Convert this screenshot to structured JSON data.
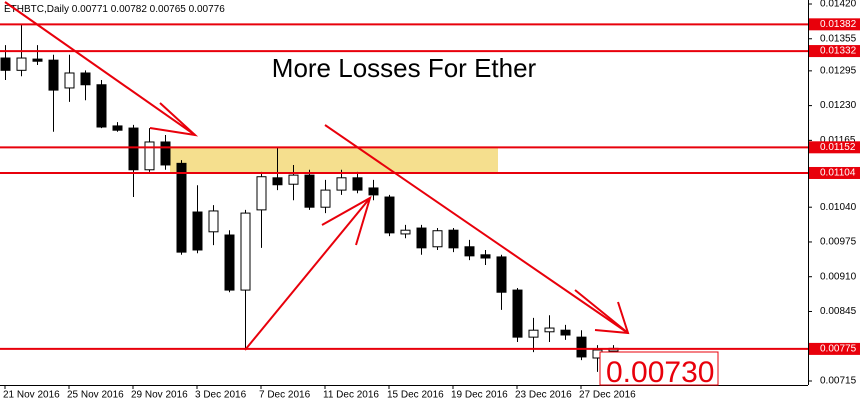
{
  "chart_data": {
    "type": "candlestick",
    "symbol": "ETHBTC,Daily",
    "title": "More Losses For Ether",
    "categories": [
      "21 Nov 2016",
      null,
      null,
      null,
      "25 Nov 2016",
      null,
      null,
      null,
      "29 Nov 2016",
      null,
      null,
      null,
      "3 Dec 2016",
      null,
      null,
      null,
      "7 Dec 2016",
      null,
      null,
      null,
      "11 Dec 2016",
      null,
      null,
      null,
      "15 Dec 2016",
      null,
      null,
      null,
      "19 Dec 2016",
      null,
      null,
      null,
      "23 Dec 2016",
      null,
      null,
      null,
      "27 Dec 2016",
      null,
      null
    ],
    "series": [
      {
        "name": "ETHBTC",
        "open": [
          0.01319,
          0.01296,
          0.01317,
          0.01315,
          0.01263,
          0.01291,
          0.01269,
          0.01192,
          0.01188,
          0.0111,
          0.01162,
          0.01122,
          0.01031,
          0.00994,
          0.00988,
          0.00885,
          0.01035,
          0.01095,
          0.01083,
          0.011,
          0.0104,
          0.01072,
          0.01095,
          0.01076,
          0.01059,
          0.0099,
          0.01001,
          0.00966,
          0.00997,
          0.00966,
          0.00951,
          0.00947,
          0.00885,
          0.00797,
          0.00807,
          0.0081,
          0.00797,
          0.00758,
          0.00771
        ],
        "high": [
          0.01343,
          0.01381,
          0.01343,
          0.01325,
          0.01325,
          0.01296,
          0.01278,
          0.01199,
          0.01194,
          0.01188,
          0.01175,
          0.01128,
          0.01081,
          0.01044,
          0.00997,
          0.01035,
          0.01106,
          0.01151,
          0.01119,
          0.0111,
          0.01091,
          0.0111,
          0.01106,
          0.01091,
          0.01063,
          0.01007,
          0.01007,
          0.01001,
          0.01001,
          0.00979,
          0.0096,
          0.00951,
          0.00889,
          0.00833,
          0.00838,
          0.0082,
          0.0081,
          0.00782,
          0.00782
        ],
        "low": [
          0.01278,
          0.01285,
          0.01306,
          0.01181,
          0.01237,
          0.0124,
          0.01188,
          0.01181,
          0.01059,
          0.01106,
          0.0111,
          0.00951,
          0.00954,
          0.00969,
          0.00881,
          0.00773,
          0.00964,
          0.01072,
          0.01053,
          0.01035,
          0.01029,
          0.01063,
          0.01066,
          0.01053,
          0.00986,
          0.00982,
          0.00951,
          0.0096,
          0.00956,
          0.00941,
          0.00932,
          0.00848,
          0.00788,
          0.00769,
          0.00788,
          0.00792,
          0.00754,
          0.00732,
          0.00765
        ],
        "close": [
          0.01296,
          0.01319,
          0.01313,
          0.01259,
          0.01291,
          0.01269,
          0.0119,
          0.01184,
          0.0111,
          0.01162,
          0.01119,
          0.00956,
          0.0096,
          0.01033,
          0.00885,
          0.01029,
          0.01097,
          0.01082,
          0.011,
          0.0104,
          0.01072,
          0.01095,
          0.01072,
          0.01063,
          0.00992,
          0.00997,
          0.00964,
          0.00996,
          0.00964,
          0.00949,
          0.00945,
          0.00881,
          0.00797,
          0.0081,
          0.00814,
          0.00801,
          0.0076,
          0.00773,
          0.00776
        ]
      }
    ],
    "levels": [
      0.01382,
      0.01332,
      0.01152,
      0.01104,
      0.00775
    ],
    "level_color": "#e8000b",
    "zone": [
      0.01104,
      0.01152
    ],
    "zone_color": "#f5df8e",
    "price_callout": {
      "value": 0.0073,
      "label": "0.00730"
    },
    "ylim": [
      0.007075,
      0.014275
    ],
    "yticks": [
      {
        "value": 0.0142,
        "label": "0.01420"
      },
      0.01355,
      0.01295,
      {
        "value": 0.0123,
        "label": "0.01230"
      },
      0.01165,
      {
        "value": 0.0104,
        "label": "0.01040"
      },
      0.00975,
      {
        "value": 0.0091,
        "label": "0.00910"
      },
      0.00845,
      0.00715
    ]
  }
}
